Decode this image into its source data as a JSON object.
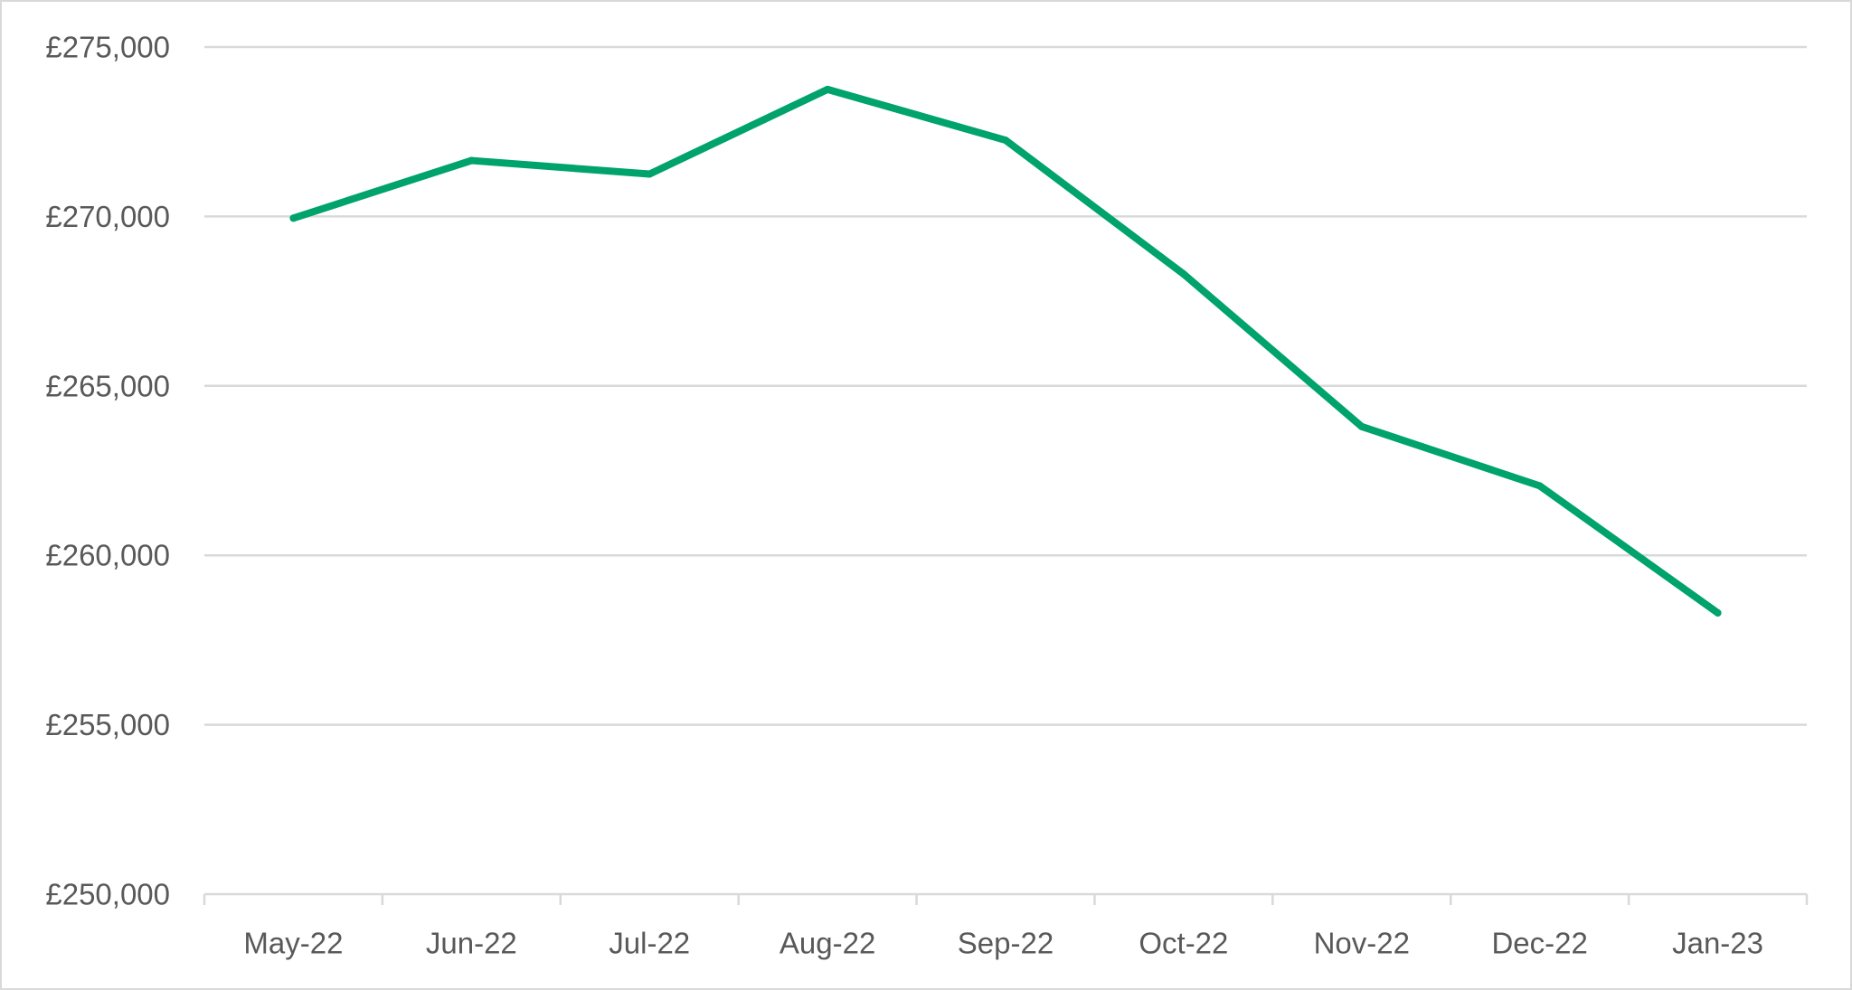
{
  "chart_data": {
    "type": "line",
    "title": "",
    "xlabel": "",
    "ylabel": "",
    "categories": [
      "May-22",
      "Jun-22",
      "Jul-22",
      "Aug-22",
      "Sep-22",
      "Oct-22",
      "Nov-22",
      "Dec-22",
      "Jan-23"
    ],
    "series": [
      {
        "values": [
          269950,
          271650,
          271250,
          273750,
          272250,
          268300,
          263800,
          262050,
          258300
        ],
        "color": "#00a36c"
      }
    ],
    "ylim": [
      250000,
      275000
    ],
    "y_ticks": [
      250000,
      255000,
      260000,
      265000,
      270000,
      275000
    ],
    "y_tick_labels": [
      "£250,000",
      "£255,000",
      "£260,000",
      "£265,000",
      "£270,000",
      "£275,000"
    ],
    "grid": true,
    "legend": "none"
  },
  "colors": {
    "series": "#00a36c",
    "grid": "#d9d9d9",
    "text": "#595959"
  }
}
